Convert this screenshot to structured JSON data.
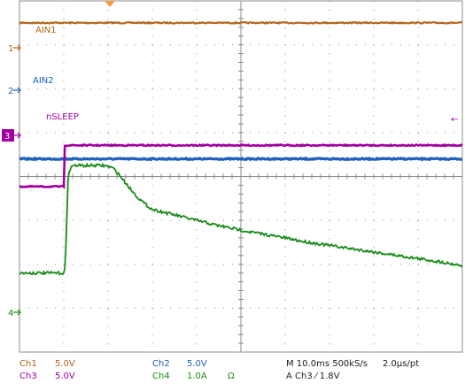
{
  "chart_data": {
    "type": "line",
    "title": "",
    "grid": true,
    "divisions": {
      "x": 10,
      "y": 8
    },
    "x_unit": "ms",
    "x_per_div": 10.0,
    "xlim": [
      -10,
      90
    ],
    "trigger_time": 0,
    "series": [
      {
        "name": "AIN1",
        "channel": "1",
        "color": "#b5651d",
        "scale_V_per_div": 5.0,
        "offset_div": 2.5,
        "x": [
          -10,
          90
        ],
        "y": [
          1.0,
          1.0
        ]
      },
      {
        "name": "AIN2",
        "channel": "2",
        "color": "#1f5fbf",
        "scale_V_per_div": 5.0,
        "offset_div": 0.2,
        "x": [
          -10,
          90
        ],
        "y": [
          0.2,
          0.2
        ]
      },
      {
        "name": "nSLEEP",
        "channel": "3",
        "color": "#a000a0",
        "scale_V_per_div": 5.0,
        "offset_div": -0.25,
        "x": [
          -10,
          0,
          0,
          90
        ],
        "y": [
          0.02,
          0.02,
          0.96,
          0.96
        ]
      },
      {
        "name": "",
        "channel": "4",
        "color": "#1a8a1a",
        "scale_A_per_div": 1.0,
        "offset_div": -2.2,
        "x": [
          -10,
          0.2,
          0.6,
          1.0,
          2.0,
          6,
          9,
          10,
          11,
          12,
          14,
          16,
          18,
          20,
          26,
          30,
          34,
          38,
          42,
          46,
          50,
          54,
          58,
          62,
          66,
          70,
          74,
          78,
          82,
          86,
          90
        ],
        "y": [
          0.0,
          0.0,
          0.9,
          2.3,
          2.45,
          2.45,
          2.45,
          2.43,
          2.4,
          2.3,
          2.05,
          1.8,
          1.6,
          1.45,
          1.3,
          1.2,
          1.1,
          1.02,
          0.94,
          0.87,
          0.8,
          0.72,
          0.66,
          0.6,
          0.54,
          0.48,
          0.42,
          0.36,
          0.3,
          0.24,
          0.17
        ]
      }
    ]
  },
  "markers": {
    "ch1": "1",
    "ch2": "2",
    "ch3": "3",
    "ch4": "4",
    "trigger_arrow": "←"
  },
  "trace_labels": {
    "ain1": "AIN1",
    "ain2": "AIN2",
    "nsleep": "nSLEEP"
  },
  "readout": {
    "ch1_name": "Ch1",
    "ch1_scale": "5.0V",
    "ch3_name": "Ch3",
    "ch3_scale": "5.0V",
    "ch2_name": "Ch2",
    "ch2_scale": "5.0V",
    "ch4_name": "Ch4",
    "ch4_scale": "1.0A",
    "ch4_unit": "Ω",
    "timebase": "M 10.0ms 500kS/s",
    "resolution": "2.0µs/pt",
    "trigger": "A  Ch3  ⁄  1.8V"
  },
  "colors": {
    "ch1": "#b5651d",
    "ch2": "#1f5fbf",
    "ch3": "#a000a0",
    "ch4": "#1a8a1a",
    "grid": "#8c8c8c",
    "trigger_marker": "#f39c4a"
  }
}
